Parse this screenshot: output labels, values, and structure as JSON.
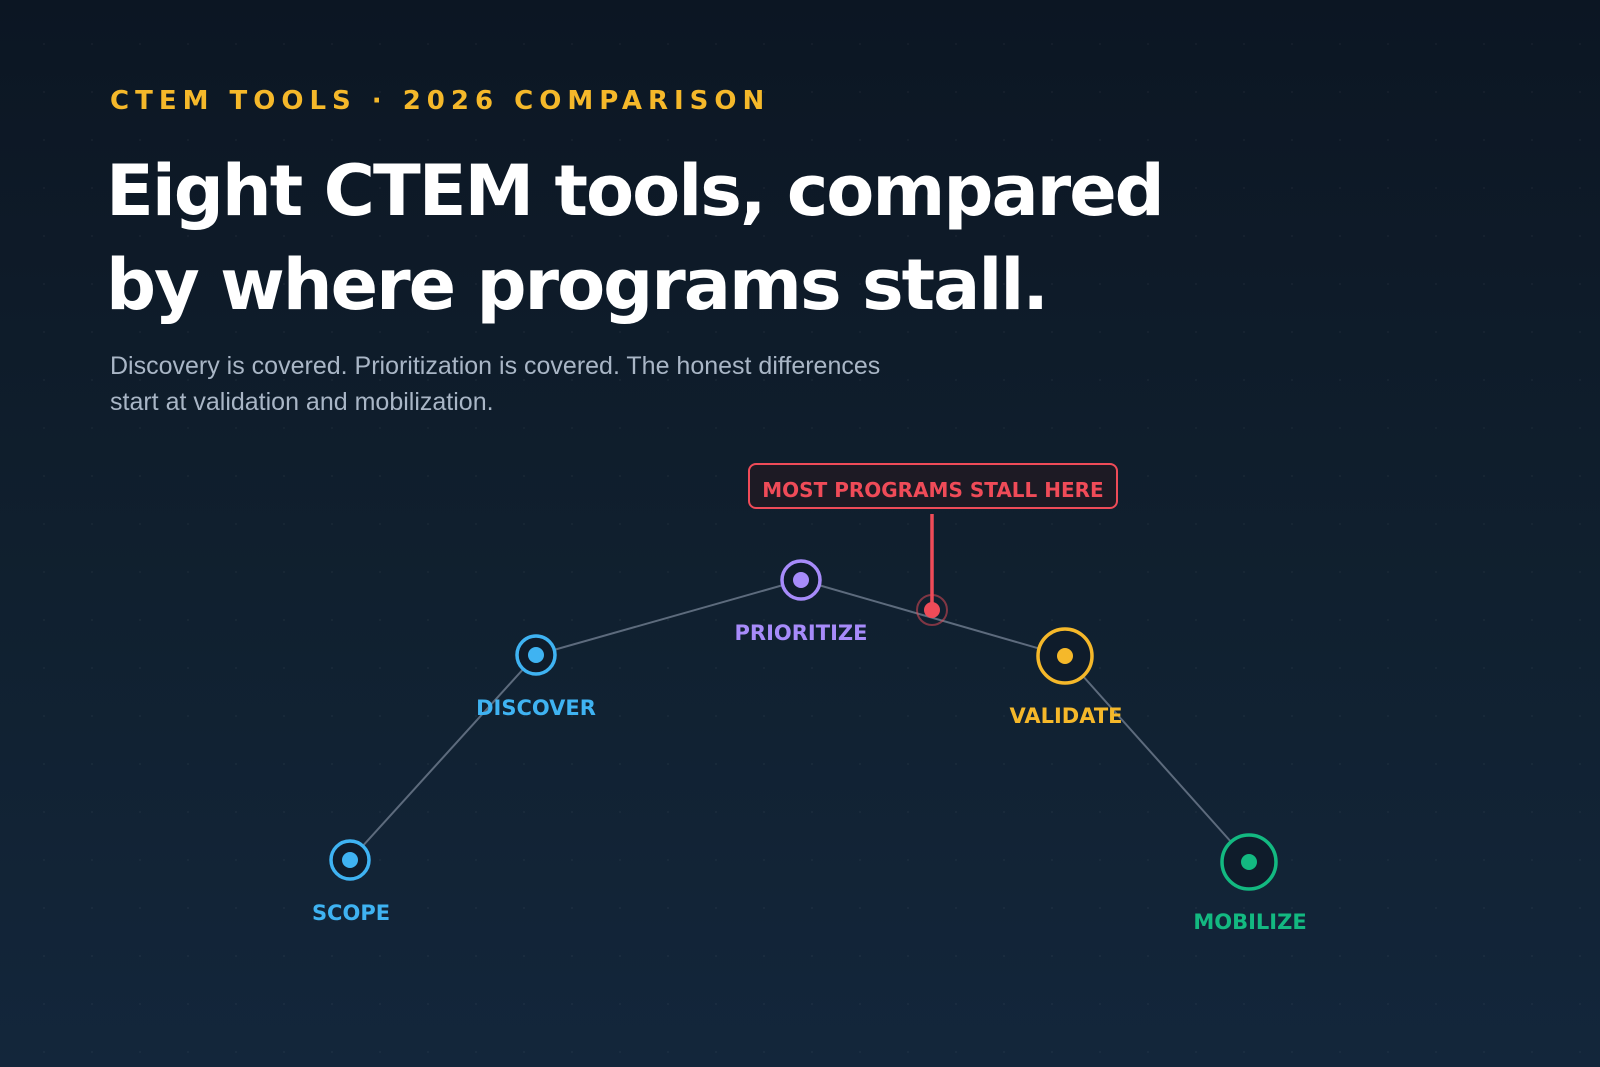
{
  "eyebrow": "CTEM TOOLS · 2026 COMPARISON",
  "headline": {
    "line1": "Eight CTEM tools, compared",
    "line2": "by where programs stall."
  },
  "subtitle": {
    "line1": "Discovery is covered. Prioritization is covered. The honest differences",
    "line2": "start at validation and mobilization."
  },
  "diagram": {
    "stages": [
      {
        "label": "SCOPE",
        "color": "#3fb3f2"
      },
      {
        "label": "DISCOVER",
        "color": "#3fb3f2"
      },
      {
        "label": "PRIORITIZE",
        "color": "#a78bfa"
      },
      {
        "label": "VALIDATE",
        "color": "#f5b82a"
      },
      {
        "label": "MOBILIZE",
        "color": "#13b981"
      }
    ],
    "callout": {
      "text": "MOST PROGRAMS STALL HERE",
      "color": "#ef4b58"
    },
    "connector_color": "#5d6b7d"
  },
  "colors": {
    "eyebrow": "#f5b82a",
    "headline": "#ffffff",
    "subtitle": "#a9b6c6"
  }
}
